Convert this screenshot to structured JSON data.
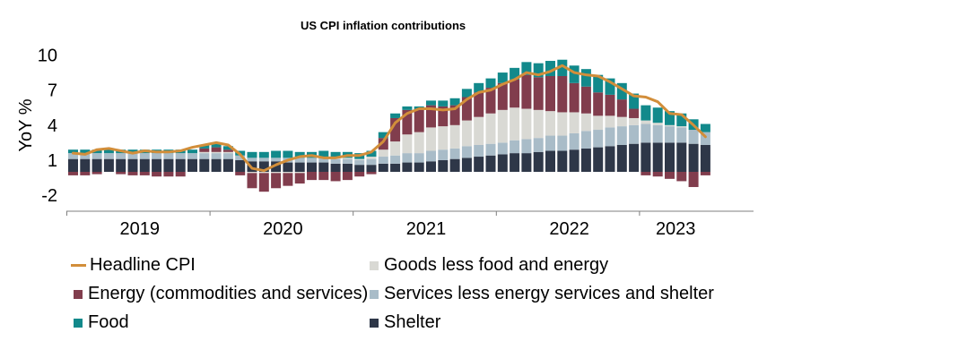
{
  "chart_data": {
    "type": "bar",
    "stacked": true,
    "title": "US CPI inflation contributions",
    "xlabel": "",
    "ylabel": "YoY %",
    "ylim": [
      -3,
      10
    ],
    "yticks": [
      "10",
      "7",
      "4",
      "1",
      "-2"
    ],
    "ytick_values": [
      10,
      7,
      4,
      1,
      -2
    ],
    "year_labels": [
      "2019",
      "2020",
      "2021",
      "2022",
      "2023"
    ],
    "start_year": 2019,
    "colors": {
      "Shelter": "#2e3748",
      "Services less energy services and shelter": "#a9bcc8",
      "Goods less food and energy": "#d9d9d4",
      "Energy (commodities and services)": "#813d4d",
      "Food": "#12898b",
      "Headline CPI": "#d28e3a"
    },
    "months": [
      "2019-01",
      "2019-02",
      "2019-03",
      "2019-04",
      "2019-05",
      "2019-06",
      "2019-07",
      "2019-08",
      "2019-09",
      "2019-10",
      "2019-11",
      "2019-12",
      "2020-01",
      "2020-02",
      "2020-03",
      "2020-04",
      "2020-05",
      "2020-06",
      "2020-07",
      "2020-08",
      "2020-09",
      "2020-10",
      "2020-11",
      "2020-12",
      "2021-01",
      "2021-02",
      "2021-03",
      "2021-04",
      "2021-05",
      "2021-06",
      "2021-07",
      "2021-08",
      "2021-09",
      "2021-10",
      "2021-11",
      "2021-12",
      "2022-01",
      "2022-02",
      "2022-03",
      "2022-04",
      "2022-05",
      "2022-06",
      "2022-07",
      "2022-08",
      "2022-09",
      "2022-10",
      "2022-11",
      "2022-12",
      "2023-01",
      "2023-02",
      "2023-03",
      "2023-04",
      "2023-05",
      "2023-06"
    ],
    "series": [
      {
        "name": "Shelter",
        "values": [
          1.1,
          1.1,
          1.1,
          1.1,
          1.1,
          1.1,
          1.1,
          1.1,
          1.1,
          1.1,
          1.1,
          1.1,
          1.1,
          1.1,
          1.0,
          0.9,
          0.9,
          0.9,
          0.8,
          0.8,
          0.8,
          0.8,
          0.7,
          0.7,
          0.6,
          0.6,
          0.7,
          0.7,
          0.8,
          0.8,
          0.9,
          1.0,
          1.1,
          1.2,
          1.3,
          1.4,
          1.5,
          1.6,
          1.6,
          1.7,
          1.8,
          1.8,
          1.9,
          2.0,
          2.1,
          2.2,
          2.3,
          2.4,
          2.5,
          2.5,
          2.5,
          2.5,
          2.4,
          2.3
        ]
      },
      {
        "name": "Services less energy services and shelter",
        "values": [
          0.5,
          0.5,
          0.5,
          0.5,
          0.5,
          0.5,
          0.5,
          0.5,
          0.5,
          0.5,
          0.5,
          0.5,
          0.5,
          0.5,
          0.4,
          0.3,
          0.3,
          0.3,
          0.4,
          0.4,
          0.4,
          0.4,
          0.4,
          0.4,
          0.4,
          0.5,
          0.6,
          0.7,
          0.8,
          0.8,
          0.9,
          0.9,
          0.9,
          1.0,
          1.0,
          1.0,
          1.0,
          1.1,
          1.2,
          1.2,
          1.3,
          1.3,
          1.4,
          1.5,
          1.5,
          1.6,
          1.6,
          1.6,
          1.6,
          1.5,
          1.4,
          1.3,
          1.2,
          1.1
        ]
      },
      {
        "name": "Goods less food and energy",
        "values": [
          0.0,
          0.0,
          0.0,
          0.0,
          0.0,
          0.0,
          0.0,
          0.0,
          0.0,
          0.0,
          0.0,
          0.1,
          0.1,
          0.1,
          0.0,
          -0.1,
          -0.1,
          -0.1,
          -0.1,
          -0.1,
          0.0,
          0.1,
          0.1,
          0.1,
          0.1,
          0.2,
          0.6,
          1.2,
          1.6,
          1.8,
          2.0,
          2.0,
          2.0,
          2.2,
          2.4,
          2.6,
          2.8,
          2.8,
          2.6,
          2.4,
          2.1,
          2.0,
          1.8,
          1.5,
          1.2,
          1.0,
          0.8,
          0.6,
          0.3,
          0.2,
          0.1,
          0.1,
          0.0,
          0.0
        ]
      },
      {
        "name": "Energy (commodities and services)",
        "values": [
          -0.3,
          -0.3,
          -0.2,
          0.0,
          -0.2,
          -0.3,
          -0.3,
          -0.4,
          -0.4,
          -0.4,
          0.0,
          0.3,
          0.4,
          0.2,
          -0.3,
          -1.3,
          -1.6,
          -1.3,
          -1.1,
          -0.9,
          -0.7,
          -0.7,
          -0.8,
          -0.7,
          -0.4,
          -0.2,
          1.0,
          2.0,
          2.1,
          1.9,
          1.9,
          1.7,
          1.7,
          2.0,
          2.1,
          2.2,
          2.3,
          2.4,
          2.9,
          2.8,
          3.0,
          3.1,
          2.5,
          2.3,
          2.0,
          1.8,
          1.5,
          0.8,
          -0.3,
          -0.4,
          -0.6,
          -0.8,
          -1.3,
          -0.3
        ]
      },
      {
        "name": "Food",
        "values": [
          0.3,
          0.3,
          0.3,
          0.3,
          0.3,
          0.3,
          0.3,
          0.3,
          0.3,
          0.3,
          0.3,
          0.3,
          0.3,
          0.3,
          0.4,
          0.5,
          0.5,
          0.6,
          0.6,
          0.5,
          0.5,
          0.5,
          0.5,
          0.5,
          0.5,
          0.5,
          0.5,
          0.4,
          0.3,
          0.3,
          0.4,
          0.5,
          0.6,
          0.7,
          0.8,
          0.8,
          0.9,
          1.0,
          1.1,
          1.2,
          1.3,
          1.4,
          1.5,
          1.5,
          1.5,
          1.4,
          1.4,
          1.3,
          1.3,
          1.3,
          1.2,
          1.1,
          0.9,
          0.7
        ]
      }
    ],
    "headline_cpi": [
      1.6,
      1.5,
      1.9,
      2.0,
      1.8,
      1.6,
      1.8,
      1.7,
      1.7,
      1.8,
      2.1,
      2.3,
      2.5,
      2.3,
      1.5,
      0.3,
      0.1,
      0.6,
      1.0,
      1.3,
      1.4,
      1.2,
      1.2,
      1.4,
      1.4,
      1.7,
      2.6,
      4.2,
      5.0,
      5.4,
      5.4,
      5.3,
      5.4,
      6.2,
      6.8,
      7.0,
      7.5,
      7.9,
      8.5,
      8.3,
      8.6,
      9.1,
      8.5,
      8.3,
      8.2,
      7.7,
      7.1,
      6.5,
      6.4,
      6.0,
      5.0,
      4.9,
      4.0,
      3.0
    ]
  },
  "legend": [
    {
      "label": "Headline CPI",
      "kind": "line",
      "color": "#d28e3a"
    },
    {
      "label": "Goods less food and energy",
      "kind": "box",
      "color": "#d9d9d4"
    },
    {
      "label": "Energy (commodities and services)",
      "kind": "box",
      "color": "#813d4d"
    },
    {
      "label": "Services less energy services and shelter",
      "kind": "box",
      "color": "#a9bcc8"
    },
    {
      "label": "Food",
      "kind": "box",
      "color": "#12898b"
    },
    {
      "label": "Shelter",
      "kind": "box",
      "color": "#2e3748"
    }
  ]
}
